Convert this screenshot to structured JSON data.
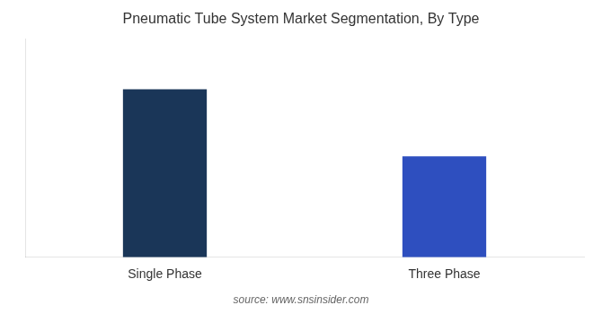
{
  "chart_data": {
    "type": "bar",
    "title": "Pneumatic Tube System Market Segmentation, By Type",
    "categories": [
      "Single Phase",
      "Three Phase"
    ],
    "values": [
      100,
      60
    ],
    "colors": [
      "#1a3658",
      "#2e4fbf"
    ],
    "ylim": [
      0,
      130
    ],
    "yticks": [],
    "grid": false,
    "tick_labels": "x",
    "annotations": [
      "source: www.snsinsider.com"
    ]
  }
}
